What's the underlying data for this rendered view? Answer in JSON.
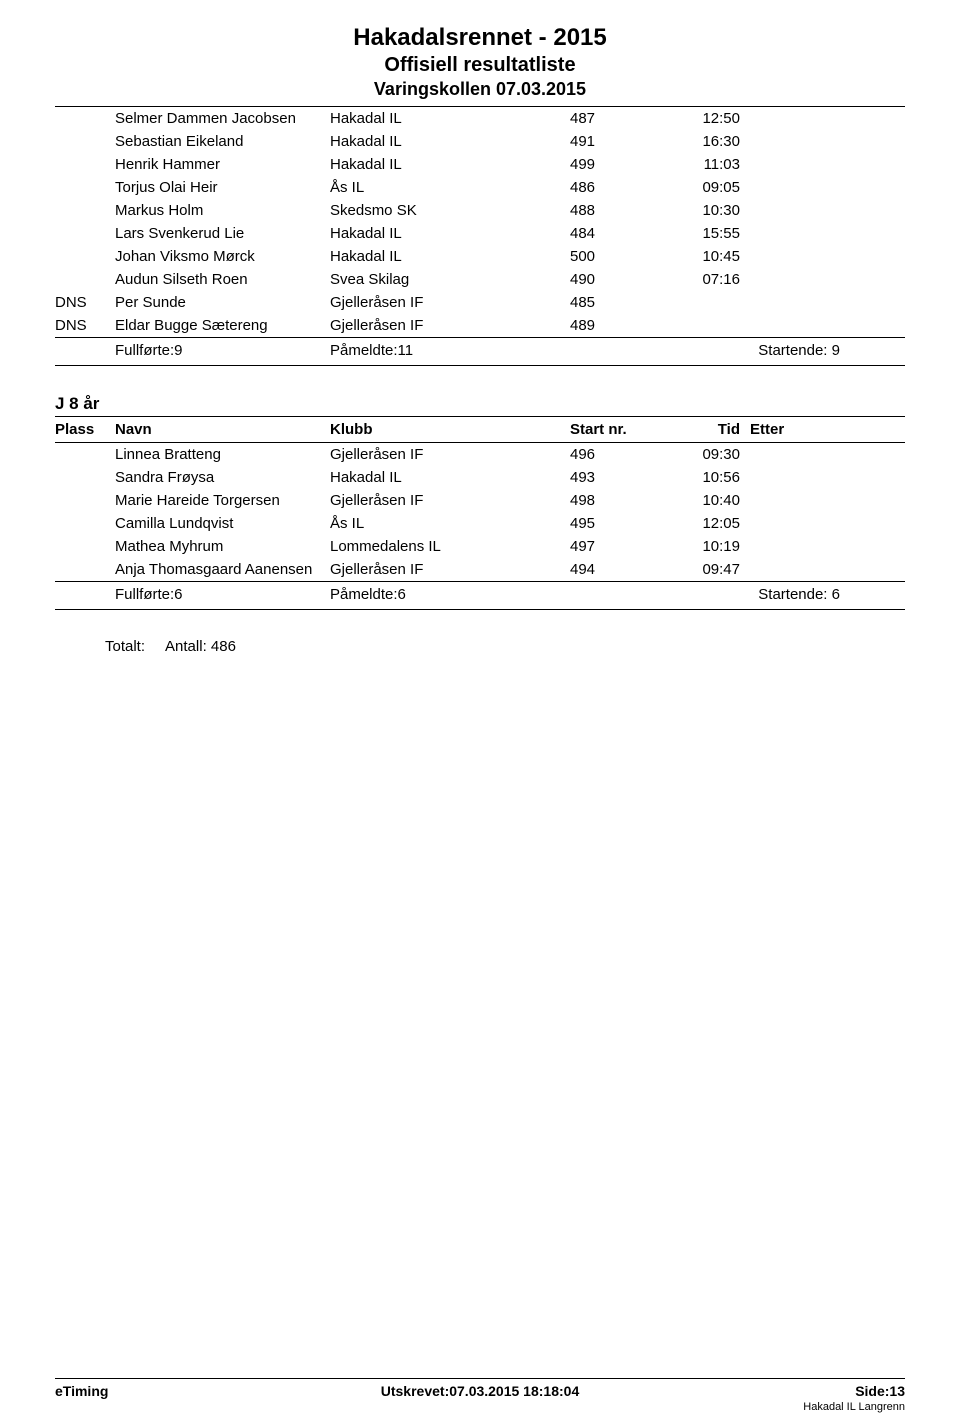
{
  "header": {
    "title_main": "Hakadalsrennet - 2015",
    "title_sub": "Offisiell resultatliste",
    "title_venue": "Varingskollen 07.03.2015"
  },
  "columns": {
    "plass": "Plass",
    "navn": "Navn",
    "klubb": "Klubb",
    "startnr": "Start nr.",
    "tid": "Tid",
    "etter": "Etter"
  },
  "section1": {
    "rows": [
      {
        "plass": "",
        "navn": "Selmer Dammen Jacobsen",
        "klubb": "Hakadal IL",
        "startnr": "487",
        "tid": "12:50",
        "etter": ""
      },
      {
        "plass": "",
        "navn": "Sebastian Eikeland",
        "klubb": "Hakadal IL",
        "startnr": "491",
        "tid": "16:30",
        "etter": ""
      },
      {
        "plass": "",
        "navn": "Henrik Hammer",
        "klubb": "Hakadal IL",
        "startnr": "499",
        "tid": "11:03",
        "etter": ""
      },
      {
        "plass": "",
        "navn": "Torjus Olai Heir",
        "klubb": "Ås IL",
        "startnr": "486",
        "tid": "09:05",
        "etter": ""
      },
      {
        "plass": "",
        "navn": "Markus Holm",
        "klubb": "Skedsmo SK",
        "startnr": "488",
        "tid": "10:30",
        "etter": ""
      },
      {
        "plass": "",
        "navn": "Lars Svenkerud Lie",
        "klubb": "Hakadal IL",
        "startnr": "484",
        "tid": "15:55",
        "etter": ""
      },
      {
        "plass": "",
        "navn": "Johan Viksmo Mørck",
        "klubb": "Hakadal IL",
        "startnr": "500",
        "tid": "10:45",
        "etter": ""
      },
      {
        "plass": "",
        "navn": "Audun Silseth Roen",
        "klubb": "Svea Skilag",
        "startnr": "490",
        "tid": "07:16",
        "etter": ""
      },
      {
        "plass": "DNS",
        "navn": "Per Sunde",
        "klubb": "Gjelleråsen IF",
        "startnr": "485",
        "tid": "",
        "etter": ""
      },
      {
        "plass": "DNS",
        "navn": "Eldar Bugge Sætereng",
        "klubb": "Gjelleråsen IF",
        "startnr": "489",
        "tid": "",
        "etter": ""
      }
    ],
    "summary": {
      "fullforte": "Fullførte:9",
      "pameldte": "Påmeldte:11",
      "startende": "Startende: 9"
    }
  },
  "section2": {
    "category": "J 8 år",
    "rows": [
      {
        "plass": "",
        "navn": "Linnea Bratteng",
        "klubb": "Gjelleråsen IF",
        "startnr": "496",
        "tid": "09:30",
        "etter": ""
      },
      {
        "plass": "",
        "navn": "Sandra Frøysa",
        "klubb": "Hakadal IL",
        "startnr": "493",
        "tid": "10:56",
        "etter": ""
      },
      {
        "plass": "",
        "navn": "Marie Hareide Torgersen",
        "klubb": "Gjelleråsen IF",
        "startnr": "498",
        "tid": "10:40",
        "etter": ""
      },
      {
        "plass": "",
        "navn": "Camilla Lundqvist",
        "klubb": "Ås IL",
        "startnr": "495",
        "tid": "12:05",
        "etter": ""
      },
      {
        "plass": "",
        "navn": "Mathea Myhrum",
        "klubb": "Lommedalens IL",
        "startnr": "497",
        "tid": "10:19",
        "etter": ""
      },
      {
        "plass": "",
        "navn": "Anja Thomasgaard Aanensen",
        "klubb": "Gjelleråsen IF",
        "startnr": "494",
        "tid": "09:47",
        "etter": ""
      }
    ],
    "summary": {
      "fullforte": "Fullførte:6",
      "pameldte": "Påmeldte:6",
      "startende": "Startende: 6"
    }
  },
  "total_label": "Totalt:",
  "total_value": "Antall: 486",
  "footer": {
    "left": "eTiming",
    "mid": "Utskrevet:07.03.2015 18:18:04",
    "right": "Side:13",
    "small": "Hakadal IL  Langrenn"
  }
}
